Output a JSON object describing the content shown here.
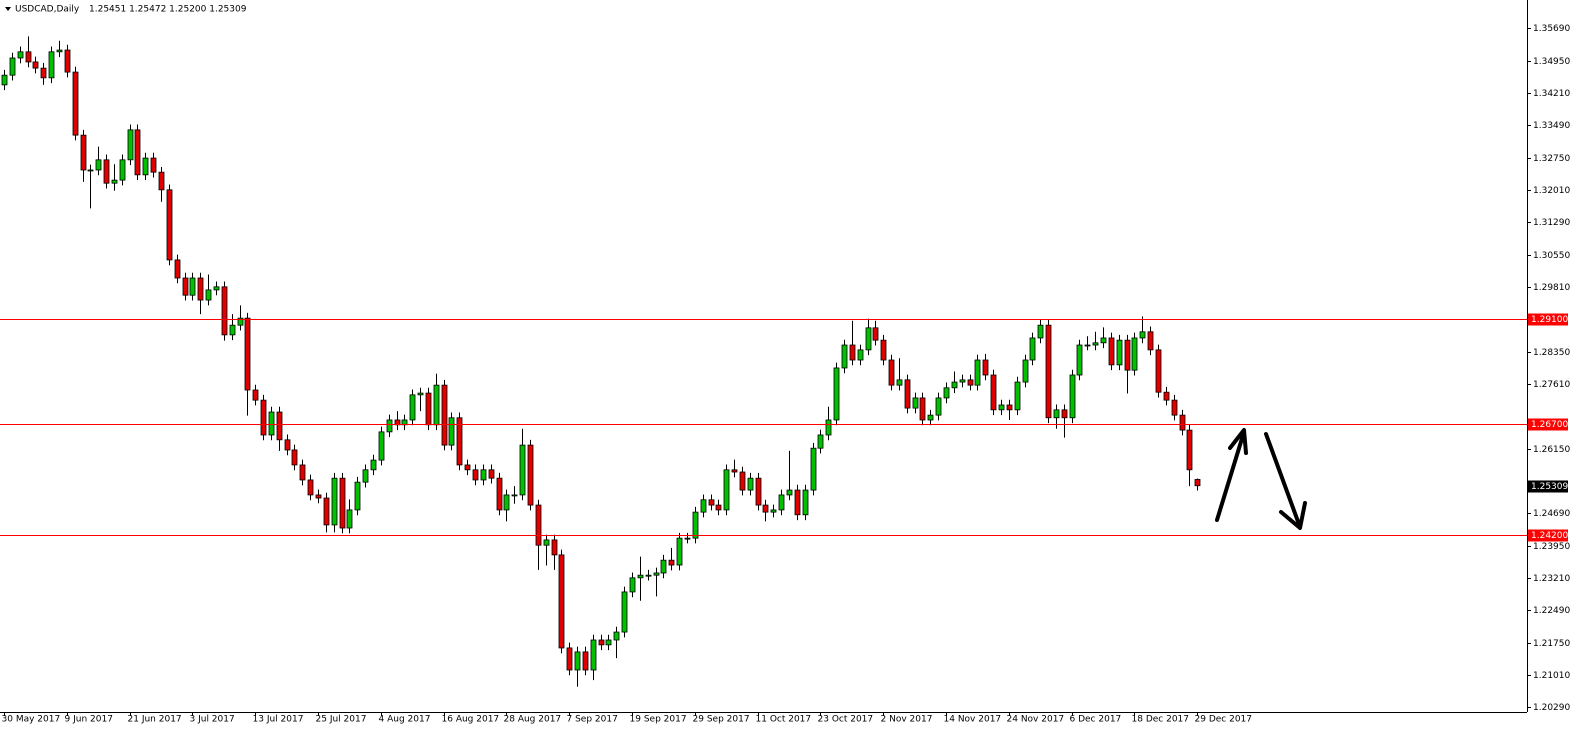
{
  "chart_data": {
    "type": "candlestick",
    "title": "USDCAD,Daily",
    "subtitle": "1.25451 1.25472 1.25200 1.25309",
    "categories": [
      "30 May 2017",
      null,
      null,
      null,
      null,
      null,
      null,
      null,
      "9 Jun 2017",
      null,
      null,
      null,
      null,
      null,
      null,
      null,
      "21 Jun 2017",
      null,
      null,
      null,
      null,
      null,
      null,
      null,
      "3 Jul 2017",
      null,
      null,
      null,
      null,
      null,
      null,
      null,
      "13 Jul 2017",
      null,
      null,
      null,
      null,
      null,
      null,
      null,
      "25 Jul 2017",
      null,
      null,
      null,
      null,
      null,
      null,
      null,
      "4 Aug 2017",
      null,
      null,
      null,
      null,
      null,
      null,
      null,
      "16 Aug 2017",
      null,
      null,
      null,
      null,
      null,
      null,
      null,
      "28 Aug 2017",
      null,
      null,
      null,
      null,
      null,
      null,
      null,
      "7 Sep 2017",
      null,
      null,
      null,
      null,
      null,
      null,
      null,
      "19 Sep 2017",
      null,
      null,
      null,
      null,
      null,
      null,
      null,
      "29 Sep 2017",
      null,
      null,
      null,
      null,
      null,
      null,
      null,
      "11 Oct 2017",
      null,
      null,
      null,
      null,
      null,
      null,
      null,
      "23 Oct 2017",
      null,
      null,
      null,
      null,
      null,
      null,
      null,
      "2 Nov 2017",
      null,
      null,
      null,
      null,
      null,
      null,
      null,
      "14 Nov 2017",
      null,
      null,
      null,
      null,
      null,
      null,
      null,
      "24 Nov 2017",
      null,
      null,
      null,
      null,
      null,
      null,
      null,
      "6 Dec 2017",
      null,
      null,
      null,
      null,
      null,
      null,
      null,
      "18 Dec 2017",
      null,
      null,
      null,
      null,
      null,
      null,
      null,
      "29 Dec 2017"
    ],
    "open": [
      1.344,
      1.3462,
      1.3501,
      1.3515,
      1.3492,
      1.3478,
      1.3456,
      1.3515,
      1.3519,
      1.3469,
      1.3326,
      1.3247,
      1.3247,
      1.327,
      1.3217,
      1.3224,
      1.327,
      1.3338,
      1.3236,
      1.3274,
      1.3242,
      1.3202,
      1.3043,
      1.3002,
      1.2963,
      1.3002,
      1.2952,
      1.2975,
      1.2982,
      1.2873,
      1.2895,
      1.2911,
      1.2748,
      1.2725,
      1.2646,
      1.2698,
      1.2635,
      1.2612,
      1.2578,
      1.2544,
      1.251,
      1.2503,
      1.2442,
      1.2548,
      1.2435,
      1.2476,
      1.2539,
      1.2567,
      1.2589,
      1.2653,
      1.268,
      1.2669,
      1.268,
      1.2737,
      1.2741,
      1.2669,
      1.2759,
      1.2623,
      1.2685,
      1.2578,
      1.2567,
      1.2544,
      1.2567,
      1.2548,
      1.2476,
      1.251,
      1.251,
      1.2623,
      1.2487,
      1.2396,
      1.2408,
      1.2374,
      1.2163,
      1.2113,
      1.2154,
      1.2113,
      1.2181,
      1.217,
      1.2181,
      1.2199,
      1.229,
      1.2322,
      1.2328,
      1.2328,
      1.2333,
      1.2362,
      1.2351,
      1.2412,
      1.2412,
      1.2471,
      1.2499,
      1.2487,
      1.2476,
      1.2567,
      1.2562,
      1.2521,
      1.2548,
      1.2487,
      1.2471,
      1.2476,
      1.251,
      1.2521,
      1.2465,
      1.2521,
      1.2616,
      1.2646,
      1.268,
      1.2798,
      1.285,
      1.2816,
      1.2839,
      1.2889,
      1.2861,
      1.2816,
      1.2759,
      1.2771,
      1.2707,
      1.273,
      1.268,
      1.2691,
      1.273,
      1.2753,
      1.2766,
      1.2771,
      1.2759,
      1.2816,
      1.2782,
      1.2703,
      1.2714,
      1.2703,
      1.2766,
      1.2816,
      1.2866,
      1.2895,
      1.2685,
      1.2703,
      1.2685,
      1.2782,
      1.285,
      1.285,
      1.2855,
      1.2866,
      1.2805,
      1.2861,
      1.2793,
      1.2866,
      1.288,
      1.2839,
      1.2743,
      1.2725,
      1.2691,
      1.2657,
      1.25451
    ],
    "high": [
      1.3474,
      1.3513,
      1.3527,
      1.355,
      1.3504,
      1.349,
      1.3527,
      1.354,
      1.3531,
      1.3481,
      1.3338,
      1.3259,
      1.33,
      1.3282,
      1.326,
      1.3282,
      1.335,
      1.335,
      1.3286,
      1.3286,
      1.3254,
      1.3214,
      1.3055,
      1.3014,
      1.3014,
      1.3014,
      1.301,
      1.2994,
      1.2994,
      1.292,
      1.294,
      1.2923,
      1.276,
      1.2737,
      1.271,
      1.271,
      1.2647,
      1.2624,
      1.259,
      1.2556,
      1.2522,
      1.2515,
      1.256,
      1.256,
      1.25,
      1.2551,
      1.2579,
      1.2601,
      1.2665,
      1.2692,
      1.27,
      1.2692,
      1.2749,
      1.2753,
      1.2753,
      1.2785,
      1.2771,
      1.2697,
      1.2697,
      1.259,
      1.2579,
      1.2579,
      1.2579,
      1.256,
      1.2522,
      1.253,
      1.266,
      1.2635,
      1.2499,
      1.242,
      1.242,
      1.2386,
      1.2175,
      1.2166,
      1.2166,
      1.2193,
      1.2193,
      1.2193,
      1.2211,
      1.2302,
      1.2334,
      1.237,
      1.234,
      1.2345,
      1.2374,
      1.239,
      1.2424,
      1.2424,
      1.2483,
      1.2511,
      1.2511,
      1.2499,
      1.2579,
      1.259,
      1.2574,
      1.256,
      1.256,
      1.2499,
      1.2488,
      1.2522,
      1.261,
      1.2533,
      1.2533,
      1.2628,
      1.2658,
      1.271,
      1.281,
      1.2862,
      1.2905,
      1.2851,
      1.291,
      1.2905,
      1.2873,
      1.2828,
      1.282,
      1.2783,
      1.2742,
      1.2742,
      1.2703,
      1.2742,
      1.2765,
      1.279,
      1.2783,
      1.2783,
      1.2828,
      1.283,
      1.2794,
      1.2726,
      1.2726,
      1.2778,
      1.2828,
      1.2878,
      1.2907,
      1.2907,
      1.2715,
      1.2715,
      1.2794,
      1.2862,
      1.287,
      1.288,
      1.289,
      1.2878,
      1.2873,
      1.2873,
      1.2878,
      1.2915,
      1.2892,
      1.2851,
      1.2755,
      1.2737,
      1.2703,
      1.2669,
      1.25472
    ],
    "low": [
      1.3428,
      1.345,
      1.3489,
      1.348,
      1.3466,
      1.344,
      1.3444,
      1.3503,
      1.3457,
      1.3314,
      1.322,
      1.316,
      1.3235,
      1.3205,
      1.32,
      1.3212,
      1.3258,
      1.3224,
      1.3224,
      1.323,
      1.3175,
      1.3031,
      1.299,
      1.2951,
      1.2951,
      1.292,
      1.294,
      1.2963,
      1.286,
      1.2861,
      1.2883,
      1.269,
      1.2713,
      1.2634,
      1.2634,
      1.261,
      1.26,
      1.2566,
      1.2532,
      1.2498,
      1.2491,
      1.2425,
      1.2425,
      1.2423,
      1.2423,
      1.2464,
      1.2527,
      1.2555,
      1.2577,
      1.2641,
      1.2657,
      1.2657,
      1.2668,
      1.27,
      1.2657,
      1.2657,
      1.2611,
      1.2611,
      1.2566,
      1.2555,
      1.2532,
      1.2532,
      1.2536,
      1.2464,
      1.245,
      1.249,
      1.2498,
      1.2475,
      1.234,
      1.235,
      1.234,
      1.2151,
      1.2101,
      1.2075,
      1.2101,
      1.209,
      1.2158,
      1.2158,
      1.214,
      1.2187,
      1.2278,
      1.227,
      1.2316,
      1.228,
      1.2321,
      1.2339,
      1.2339,
      1.24,
      1.24,
      1.2459,
      1.2475,
      1.2464,
      1.2464,
      1.255,
      1.2509,
      1.2509,
      1.2475,
      1.245,
      1.2459,
      1.2464,
      1.2498,
      1.2453,
      1.2453,
      1.2509,
      1.2604,
      1.2634,
      1.2668,
      1.2786,
      1.2804,
      1.2804,
      1.2827,
      1.2849,
      1.2804,
      1.2747,
      1.2747,
      1.2695,
      1.2695,
      1.2668,
      1.2668,
      1.2679,
      1.2718,
      1.2741,
      1.2754,
      1.2747,
      1.2747,
      1.277,
      1.2691,
      1.2691,
      1.268,
      1.2691,
      1.2754,
      1.2804,
      1.2854,
      1.2673,
      1.266,
      1.264,
      1.2673,
      1.277,
      1.2838,
      1.2838,
      1.2843,
      1.2793,
      1.2793,
      1.274,
      1.2781,
      1.2854,
      1.2827,
      1.2731,
      1.2713,
      1.2679,
      1.2645,
      1.253,
      1.252
    ],
    "close": [
      1.3462,
      1.3501,
      1.3515,
      1.3492,
      1.3478,
      1.3456,
      1.3515,
      1.3519,
      1.3469,
      1.3326,
      1.3247,
      1.3247,
      1.327,
      1.3217,
      1.3224,
      1.327,
      1.3338,
      1.3236,
      1.3274,
      1.3242,
      1.3202,
      1.3043,
      1.3002,
      1.2963,
      1.3002,
      1.2952,
      1.2975,
      1.2982,
      1.2873,
      1.2895,
      1.2911,
      1.2748,
      1.2725,
      1.2646,
      1.2698,
      1.2635,
      1.2612,
      1.2578,
      1.2544,
      1.251,
      1.2503,
      1.2442,
      1.2548,
      1.2435,
      1.2476,
      1.2539,
      1.2567,
      1.2589,
      1.2653,
      1.268,
      1.2669,
      1.268,
      1.2737,
      1.2741,
      1.2669,
      1.2759,
      1.2623,
      1.2685,
      1.2578,
      1.2567,
      1.2544,
      1.2567,
      1.2548,
      1.2476,
      1.251,
      1.251,
      1.2623,
      1.2487,
      1.2396,
      1.2408,
      1.2374,
      1.2163,
      1.2113,
      1.2154,
      1.2113,
      1.2181,
      1.217,
      1.2181,
      1.2199,
      1.229,
      1.2322,
      1.2328,
      1.2328,
      1.2333,
      1.2362,
      1.2351,
      1.2412,
      1.2412,
      1.2471,
      1.2499,
      1.2487,
      1.2476,
      1.2567,
      1.2562,
      1.2521,
      1.2548,
      1.2487,
      1.2471,
      1.2476,
      1.251,
      1.2521,
      1.2465,
      1.2521,
      1.2616,
      1.2646,
      1.268,
      1.2798,
      1.285,
      1.2816,
      1.2839,
      1.2889,
      1.2861,
      1.2816,
      1.2759,
      1.2771,
      1.2707,
      1.273,
      1.268,
      1.2691,
      1.273,
      1.2753,
      1.2766,
      1.2771,
      1.2759,
      1.2816,
      1.2782,
      1.2703,
      1.2714,
      1.2703,
      1.2766,
      1.2816,
      1.2866,
      1.2895,
      1.2685,
      1.2703,
      1.2685,
      1.2782,
      1.285,
      1.285,
      1.2855,
      1.2866,
      1.2805,
      1.2861,
      1.2793,
      1.2866,
      1.288,
      1.2839,
      1.2743,
      1.2725,
      1.2691,
      1.2657,
      1.2567,
      1.25309
    ],
    "up_color": "#00c000",
    "down_color": "#e00000",
    "ylim": [
      1.20177,
      1.36325
    ],
    "yticks": [
      {
        "value": 1.3569,
        "label": "1.35690"
      },
      {
        "value": 1.3495,
        "label": "1.34950"
      },
      {
        "value": 1.3421,
        "label": "1.34210"
      },
      {
        "value": 1.3349,
        "label": "1.33490"
      },
      {
        "value": 1.3275,
        "label": "1.32750"
      },
      {
        "value": 1.3201,
        "label": "1.32010"
      },
      {
        "value": 1.3129,
        "label": "1.31290"
      },
      {
        "value": 1.3055,
        "label": "1.30550"
      },
      {
        "value": 1.2981,
        "label": "1.29810"
      },
      {
        "value": 1.2835,
        "label": "1.28350"
      },
      {
        "value": 1.2761,
        "label": "1.27610"
      },
      {
        "value": 1.2615,
        "label": "1.26150"
      },
      {
        "value": 1.2469,
        "label": "1.24690"
      },
      {
        "value": 1.2395,
        "label": "1.23950"
      },
      {
        "value": 1.2321,
        "label": "1.23210"
      },
      {
        "value": 1.2249,
        "label": "1.22490"
      },
      {
        "value": 1.2175,
        "label": "1.21750"
      },
      {
        "value": 1.2101,
        "label": "1.21010"
      },
      {
        "value": 1.2029,
        "label": "1.20290"
      }
    ],
    "levels": [
      {
        "value": 1.291,
        "label": "1.29100"
      },
      {
        "value": 1.267,
        "label": "1.26700"
      },
      {
        "value": 1.242,
        "label": "1.24200"
      }
    ],
    "level_color": "#ff0000"
  }
}
